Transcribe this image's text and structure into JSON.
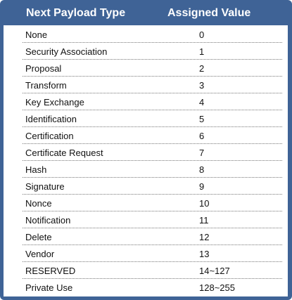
{
  "table": {
    "header": {
      "col1": "Next Payload Type",
      "col2": "Assigned Value"
    },
    "rows": [
      {
        "type": "None",
        "value": "0"
      },
      {
        "type": "Security Association",
        "value": "1"
      },
      {
        "type": "Proposal",
        "value": "2"
      },
      {
        "type": "Transform",
        "value": "3"
      },
      {
        "type": "Key Exchange",
        "value": "4"
      },
      {
        "type": "Identification",
        "value": "5"
      },
      {
        "type": "Certification",
        "value": "6"
      },
      {
        "type": "Certificate Request",
        "value": "7"
      },
      {
        "type": "Hash",
        "value": "8"
      },
      {
        "type": "Signature",
        "value": "9"
      },
      {
        "type": "Nonce",
        "value": "10"
      },
      {
        "type": "Notification",
        "value": "11"
      },
      {
        "type": "Delete",
        "value": "12"
      },
      {
        "type": "Vendor",
        "value": "13"
      },
      {
        "type": "RESERVED",
        "value": "14~127"
      },
      {
        "type": "Private Use",
        "value": "128~255"
      }
    ]
  },
  "colors": {
    "frame": "#3f6396",
    "header_text": "#ffffff",
    "cell_text": "#111111"
  }
}
